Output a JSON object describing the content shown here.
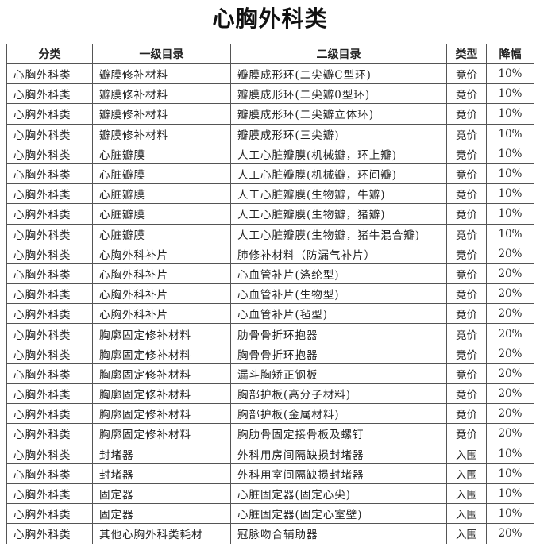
{
  "title": "心胸外科类",
  "headers": [
    "分类",
    "一级目录",
    "二级目录",
    "类型",
    "降幅"
  ],
  "rows": [
    [
      "心胸外科类",
      "瓣膜修补材料",
      "瓣膜成形环(二尖瓣C型环)",
      "竞价",
      "10%"
    ],
    [
      "心胸外科类",
      "瓣膜修补材料",
      "瓣膜成形环(二尖瓣0型环)",
      "竞价",
      "10%"
    ],
    [
      "心胸外科类",
      "瓣膜修补材料",
      "瓣膜成形环(二尖瓣立体环)",
      "竞价",
      "10%"
    ],
    [
      "心胸外科类",
      "瓣膜修补材料",
      "瓣膜成形环(三尖瓣)",
      "竞价",
      "10%"
    ],
    [
      "心胸外科类",
      "心脏瓣膜",
      "人工心脏瓣膜(机械瓣，环上瓣)",
      "竞价",
      "10%"
    ],
    [
      "心胸外科类",
      "心脏瓣膜",
      "人工心脏瓣膜(机械瓣，环间瓣)",
      "竞价",
      "10%"
    ],
    [
      "心胸外科类",
      "心脏瓣膜",
      "人工心脏瓣膜(生物瓣，牛瓣)",
      "竞价",
      "10%"
    ],
    [
      "心胸外科类",
      "心脏瓣膜",
      "人工心脏瓣膜(生物瓣，猪瓣)",
      "竞价",
      "10%"
    ],
    [
      "心胸外科类",
      "心脏瓣膜",
      "人工心脏瓣膜(生物瓣，猪牛混合瓣)",
      "竞价",
      "10%"
    ],
    [
      "心胸外科类",
      "心胸外科补片",
      "肺修补材料（防漏气补片）",
      "竞价",
      "20%"
    ],
    [
      "心胸外科类",
      "心胸外科补片",
      "心血管补片(涤纶型)",
      "竞价",
      "20%"
    ],
    [
      "心胸外科类",
      "心胸外科补片",
      "心血管补片(生物型)",
      "竞价",
      "20%"
    ],
    [
      "心胸外科类",
      "心胸外科补片",
      "心血管补片(毡型)",
      "竞价",
      "20%"
    ],
    [
      "心胸外科类",
      "胸廓固定修补材料",
      "肋骨骨折环抱器",
      "竞价",
      "20%"
    ],
    [
      "心胸外科类",
      "胸廓固定修补材料",
      "胸骨骨折环抱器",
      "竞价",
      "20%"
    ],
    [
      "心胸外科类",
      "胸廓固定修补材料",
      "漏斗胸矫正钢板",
      "竞价",
      "20%"
    ],
    [
      "心胸外科类",
      "胸廓固定修补材料",
      "胸部护板(高分子材料)",
      "竞价",
      "20%"
    ],
    [
      "心胸外科类",
      "胸廓固定修补材料",
      "胸部护板(金属材料)",
      "竞价",
      "20%"
    ],
    [
      "心胸外科类",
      "胸廓固定修补材料",
      "胸肋骨固定接骨板及螺钉",
      "竞价",
      "20%"
    ],
    [
      "心胸外科类",
      "封堵器",
      "外科用房间隔缺损封堵器",
      "入围",
      "10%"
    ],
    [
      "心胸外科类",
      "封堵器",
      "外科用室间隔缺损封堵器",
      "入围",
      "10%"
    ],
    [
      "心胸外科类",
      "固定器",
      "心脏固定器(固定心尖)",
      "入围",
      "10%"
    ],
    [
      "心胸外科类",
      "固定器",
      "心脏固定器(固定心室壁)",
      "入围",
      "10%"
    ],
    [
      "心胸外科类",
      "其他心胸外科类耗材",
      "冠脉吻合辅助器",
      "入围",
      "20%"
    ]
  ]
}
